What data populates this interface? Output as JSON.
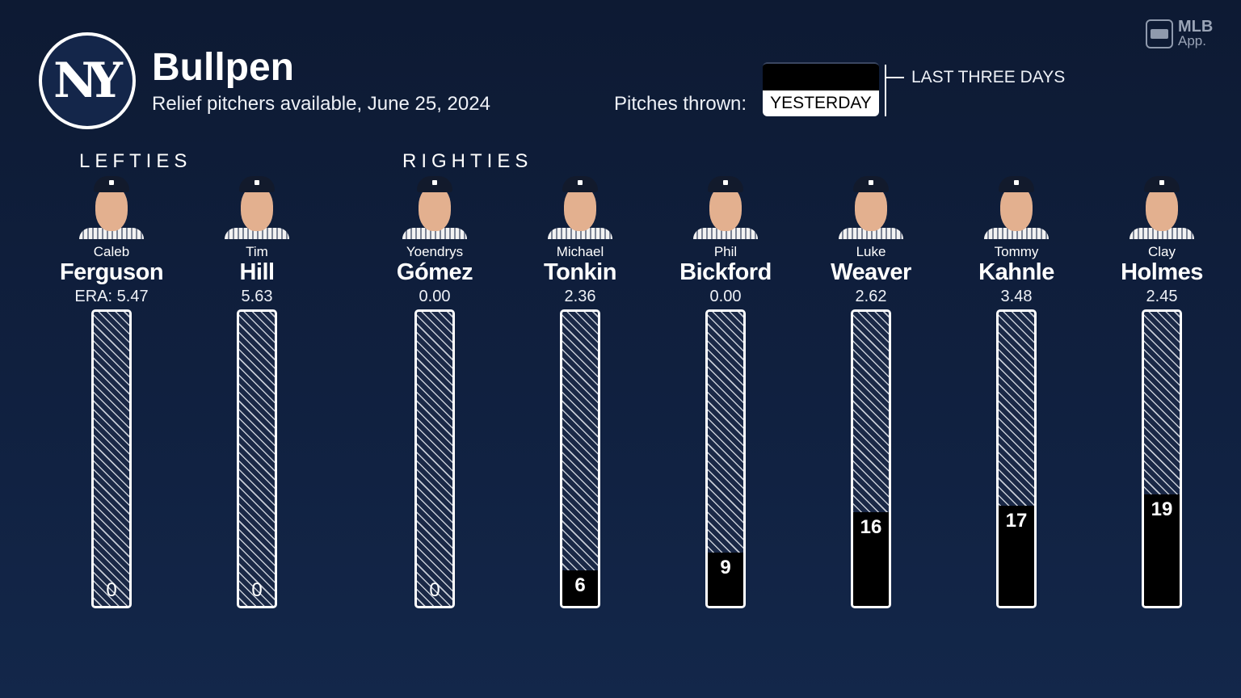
{
  "header": {
    "title": "Bullpen",
    "subtitle": "Relief pitchers available, June 25, 2024",
    "pitches_label": "Pitches thrown:",
    "toggle_selected": "YESTERDAY",
    "toggle_other": "LAST THREE DAYS",
    "logo_text": "NY",
    "app_logo": {
      "line1": "MLB",
      "line2": "App."
    }
  },
  "sections": {
    "lefties": "LEFTIES",
    "righties": "RIGHTIES"
  },
  "colors": {
    "background": "#10203f",
    "bar_fill": "#000000",
    "bar_border": "#ffffff"
  },
  "chart_data": {
    "type": "bar",
    "categories": [
      "Caleb Ferguson",
      "Tim Hill",
      "Yoendrys Gómez",
      "Michael Tonkin",
      "Phil Bickford",
      "Luke Weaver",
      "Tommy Kahnle",
      "Clay Holmes"
    ],
    "values": [
      0,
      0,
      0,
      6,
      9,
      16,
      17,
      19
    ],
    "ylim": [
      0,
      50
    ],
    "title": "",
    "xlabel": "",
    "ylabel": ""
  },
  "pitchers": [
    {
      "first": "Caleb",
      "last": "Ferguson",
      "era": "ERA: 5.47",
      "pitches": "0",
      "hand": "L"
    },
    {
      "first": "Tim",
      "last": "Hill",
      "era": "5.63",
      "pitches": "0",
      "hand": "L"
    },
    {
      "first": "Yoendrys",
      "last": "Gómez",
      "era": "0.00",
      "pitches": "0",
      "hand": "R"
    },
    {
      "first": "Michael",
      "last": "Tonkin",
      "era": "2.36",
      "pitches": "6",
      "hand": "R"
    },
    {
      "first": "Phil",
      "last": "Bickford",
      "era": "0.00",
      "pitches": "9",
      "hand": "R"
    },
    {
      "first": "Luke",
      "last": "Weaver",
      "era": "2.62",
      "pitches": "16",
      "hand": "R"
    },
    {
      "first": "Tommy",
      "last": "Kahnle",
      "era": "3.48",
      "pitches": "17",
      "hand": "R"
    },
    {
      "first": "Clay",
      "last": "Holmes",
      "era": "2.45",
      "pitches": "19",
      "hand": "R"
    }
  ]
}
